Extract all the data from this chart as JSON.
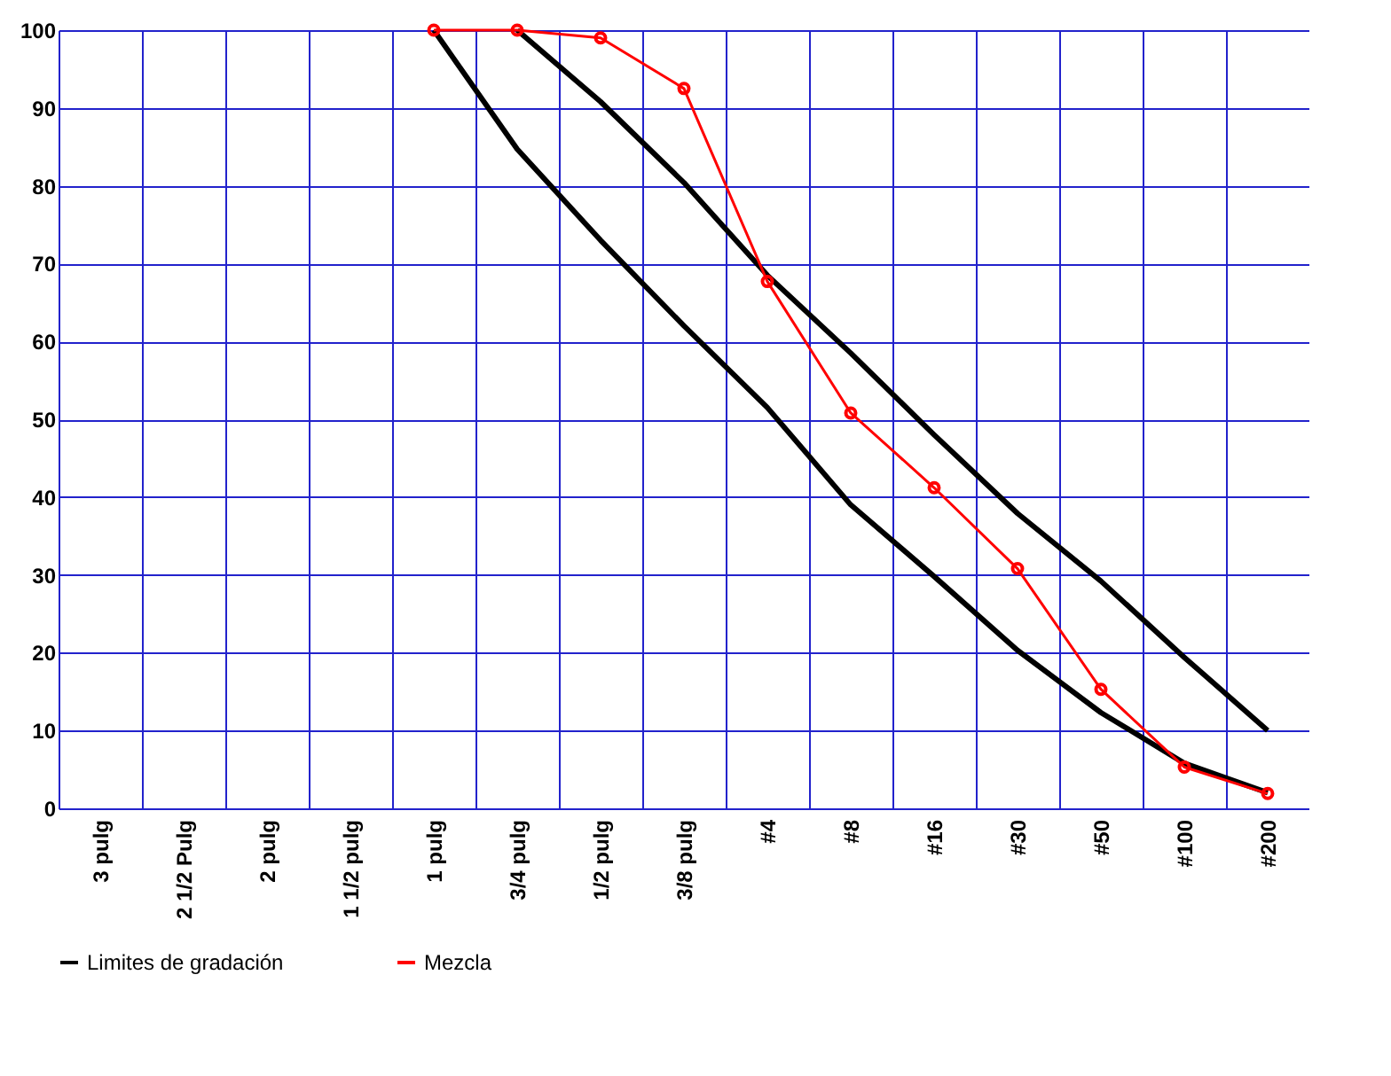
{
  "chart_data": {
    "type": "line",
    "categories": [
      "3 pulg",
      "2 1/2 Pulg",
      "2 pulg",
      "1 1/2 pulg",
      "1 pulg",
      "3/4 pulg",
      "1/2 pulg",
      "3/8 pulg",
      "#4",
      "#8",
      "#16",
      "#30",
      "#50",
      "#100",
      "#200"
    ],
    "series": [
      {
        "name": "Limites de gradación",
        "color": "#000000",
        "marker": "none",
        "values": [
          null,
          null,
          null,
          null,
          100,
          84.7,
          73,
          62,
          51.5,
          39,
          29.8,
          20.3,
          12.3,
          5.8,
          2
        ]
      },
      {
        "color": "#000000",
        "marker": "none",
        "values": [
          null,
          null,
          null,
          null,
          null,
          100,
          90.8,
          80.4,
          68.5,
          58.5,
          48,
          37.9,
          29.2,
          19.4,
          10
        ]
      },
      {
        "name": "Mezcla",
        "color": "#ff0000",
        "marker": "circle",
        "values": [
          null,
          null,
          null,
          null,
          100,
          100,
          99,
          92.5,
          67.7,
          50.8,
          41.2,
          30.8,
          15.3,
          5.3,
          1.9
        ]
      }
    ],
    "ylim": [
      0,
      100
    ],
    "yticks": [
      0,
      10,
      20,
      30,
      40,
      50,
      60,
      70,
      80,
      90,
      100
    ],
    "grid": true,
    "legend": "bottom",
    "line_style": "solid"
  }
}
